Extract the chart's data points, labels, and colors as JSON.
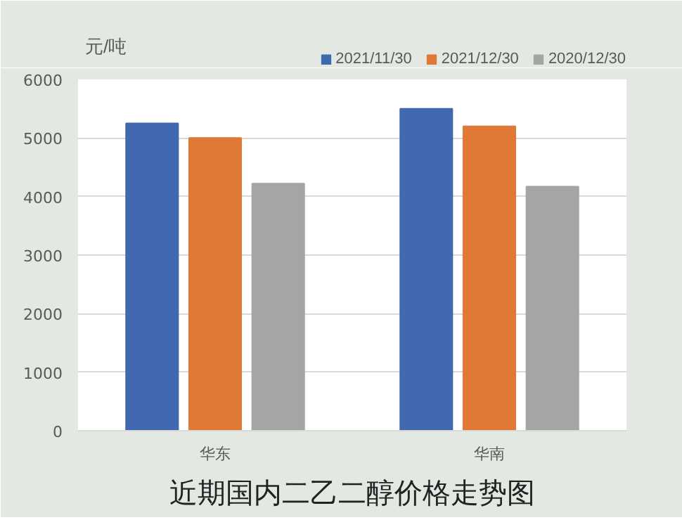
{
  "chart_data": {
    "type": "bar",
    "title": "近期国内二乙二醇价格走势图",
    "ylabel": "元/吨",
    "categories": [
      "华东",
      "华南"
    ],
    "series": [
      {
        "name": "2021/11/30",
        "color": "#4169b0",
        "values": [
          5250,
          5500
        ]
      },
      {
        "name": "2021/12/30",
        "color": "#df7935",
        "values": [
          5000,
          5200
        ]
      },
      {
        "name": "2020/12/30",
        "color": "#a5a5a5",
        "values": [
          4220,
          4170
        ]
      }
    ],
    "ylim": [
      0,
      6000
    ],
    "yticks": [
      0,
      1000,
      2000,
      3000,
      4000,
      5000,
      6000
    ],
    "grid": "y",
    "legend": "top right"
  }
}
